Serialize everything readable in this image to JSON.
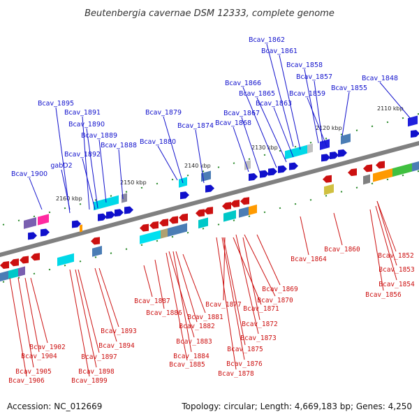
{
  "title": "Beutenbergia cavernae DSM 12333, complete genome",
  "footer": {
    "accession": "Accession: NC_012669",
    "summary": "Topology: circular; Length: 4,669,183 bp; Genes: 4,250"
  },
  "kbp_ticks": [
    "2110 kbp",
    "2120 kbp",
    "2130 kbp",
    "2140 kbp",
    "2150 kbp",
    "2160 kbp"
  ],
  "forward_genes": [
    "Bcav_1862",
    "Bcav_1861",
    "Bcav_1858",
    "Bcav_1857",
    "Bcav_1848",
    "Bcav_1866",
    "Bcav_1865",
    "Bcav_1859",
    "Bcav_1855",
    "Bcav_1863",
    "Bcav_1895",
    "Bcav_1879",
    "Bcav_1867",
    "Bcav_1891",
    "Bcav_1874",
    "Bcav_1868",
    "Bcav_1890",
    "Bcav_1889",
    "Bcav_1880",
    "Bcav_1888",
    "Bcav_1892",
    "gabD2",
    "Bcav_1900"
  ],
  "reverse_genes": [
    "Bcav_1860",
    "Bcav_1864",
    "Bcav_1852",
    "Bcav_1853",
    "Bcav_1854",
    "Bcav_1869",
    "Bcav_1856",
    "Bcav_1870",
    "Bcav_1887",
    "Bcav_1877",
    "Bcav_1871",
    "Bcav_1886",
    "Bcav_1881",
    "Bcav_1872",
    "Bcav_1882",
    "Bcav_1893",
    "Bcav_1873",
    "Bcav_1883",
    "Bcav_1894",
    "Bcav_1902",
    "Bcav_1875",
    "Bcav_1904",
    "Bcav_1884",
    "Bcav_1897",
    "Bcav_1885",
    "Bcav_1876",
    "Bcav_1905",
    "Bcav_1898",
    "Bcav_1878",
    "Bcav_1906",
    "Bcav_1899"
  ],
  "colors": {
    "forward": "#1010cc",
    "reverse": "#cc1010",
    "backbone": "#808080",
    "ticks": "#2a8a2a"
  }
}
